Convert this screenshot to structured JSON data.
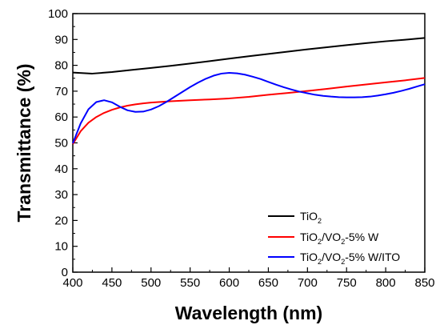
{
  "chart_data": {
    "type": "line",
    "xlabel": "Wavelength (nm)",
    "ylabel": "Transmittance (%)",
    "xlim": [
      400,
      850
    ],
    "ylim": [
      0,
      100
    ],
    "x_ticks": [
      400,
      450,
      500,
      550,
      600,
      650,
      700,
      750,
      800,
      850
    ],
    "y_ticks": [
      0,
      10,
      20,
      30,
      40,
      50,
      60,
      70,
      80,
      90,
      100
    ],
    "grid": false,
    "legend_position": "bottom-right",
    "series": [
      {
        "name": "TiO2",
        "legend_parts": [
          "TiO",
          "2",
          ""
        ],
        "color": "#000000",
        "x": [
          400,
          425,
          450,
          475,
          500,
          525,
          550,
          575,
          600,
          625,
          650,
          675,
          700,
          725,
          750,
          775,
          800,
          825,
          850
        ],
        "y": [
          77.2,
          76.8,
          77.4,
          78.2,
          79.0,
          79.8,
          80.7,
          81.6,
          82.6,
          83.5,
          84.4,
          85.3,
          86.2,
          87.0,
          87.8,
          88.6,
          89.3,
          89.9,
          90.6
        ]
      },
      {
        "name": "TiO2/VO2-5% W",
        "legend_parts": [
          "TiO",
          "2",
          "/VO",
          "2",
          "-5% W"
        ],
        "color": "#ff0000",
        "x": [
          400,
          410,
          420,
          430,
          440,
          450,
          460,
          470,
          480,
          490,
          500,
          525,
          550,
          575,
          600,
          625,
          650,
          675,
          700,
          725,
          750,
          775,
          800,
          825,
          850
        ],
        "y": [
          49.5,
          54.5,
          57.8,
          60.0,
          61.6,
          62.8,
          63.7,
          64.4,
          64.9,
          65.3,
          65.6,
          66.1,
          66.5,
          66.8,
          67.2,
          67.8,
          68.6,
          69.3,
          70.1,
          70.9,
          71.8,
          72.6,
          73.4,
          74.2,
          75.1
        ]
      },
      {
        "name": "TiO2/VO2-5% W/ITO",
        "legend_parts": [
          "TiO",
          "2",
          "/VO",
          "2",
          "-5% W/ITO"
        ],
        "color": "#0000ff",
        "x": [
          400,
          410,
          420,
          430,
          440,
          450,
          460,
          470,
          480,
          490,
          500,
          510,
          520,
          530,
          540,
          550,
          560,
          570,
          580,
          590,
          600,
          610,
          620,
          630,
          640,
          650,
          660,
          670,
          680,
          690,
          700,
          710,
          720,
          730,
          740,
          750,
          760,
          770,
          780,
          790,
          800,
          810,
          820,
          830,
          840,
          850
        ],
        "y": [
          49.8,
          57.5,
          63.0,
          65.8,
          66.5,
          65.7,
          64.0,
          62.6,
          62.0,
          62.1,
          62.9,
          64.2,
          65.9,
          67.8,
          69.7,
          71.6,
          73.3,
          74.8,
          76.0,
          76.8,
          77.1,
          76.9,
          76.4,
          75.6,
          74.7,
          73.6,
          72.5,
          71.5,
          70.6,
          69.8,
          69.2,
          68.6,
          68.2,
          67.9,
          67.7,
          67.6,
          67.6,
          67.7,
          67.9,
          68.3,
          68.8,
          69.4,
          70.1,
          70.9,
          71.8,
          72.7
        ]
      }
    ]
  }
}
